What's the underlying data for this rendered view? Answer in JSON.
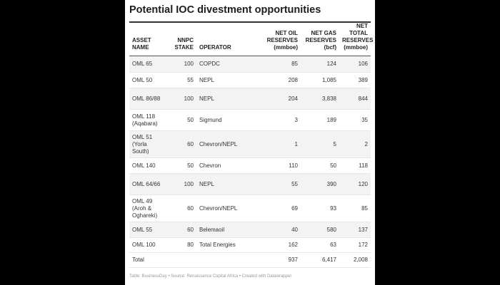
{
  "title": "Potential IOC divestment opportunities",
  "columns": [
    {
      "label": "ASSET NAME"
    },
    {
      "label": "NNPC STAKE"
    },
    {
      "label": "OPERATOR"
    },
    {
      "label": "NET OIL RESERVES (mmboe)"
    },
    {
      "label": "NET GAS RESERVES (bcf)"
    },
    {
      "label": "NET TOTAL RESERVES (mmboe)"
    }
  ],
  "rows": [
    [
      "OML 65",
      "100",
      "COPDC",
      "85",
      "124",
      "106"
    ],
    [
      "OML 50",
      "55",
      "NEPL",
      "208",
      "1,085",
      "389"
    ],
    [
      "OML 86/88",
      "100",
      "NEPL",
      "204",
      "3,838",
      "844"
    ],
    [
      "OML 118 (Aqabara)",
      "50",
      "Sigmund",
      "3",
      "189",
      "35"
    ],
    [
      "OML 51 (Yorla South)",
      "60",
      "Chevron/NEPL",
      "1",
      "5",
      "2"
    ],
    [
      "OML 140",
      "50",
      "Chevron",
      "110",
      "50",
      "118"
    ],
    [
      "OML 64/66",
      "100",
      "NEPL",
      "55",
      "390",
      "120"
    ],
    [
      "OML 49 (Aroh & Oghareki)",
      "60",
      "Chevron/NEPL",
      "69",
      "93",
      "85"
    ],
    [
      "OML 55",
      "60",
      "Belemaoil",
      "40",
      "580",
      "137"
    ],
    [
      "OML 100",
      "80",
      "Total Energies",
      "162",
      "63",
      "172"
    ]
  ],
  "total": {
    "label": "Total",
    "oil": "937",
    "gas": "6,417",
    "total": "2,008"
  },
  "footer": "Table: BusinessDay • Source: Renaissance Capital Africa • Created with Datawrapper"
}
